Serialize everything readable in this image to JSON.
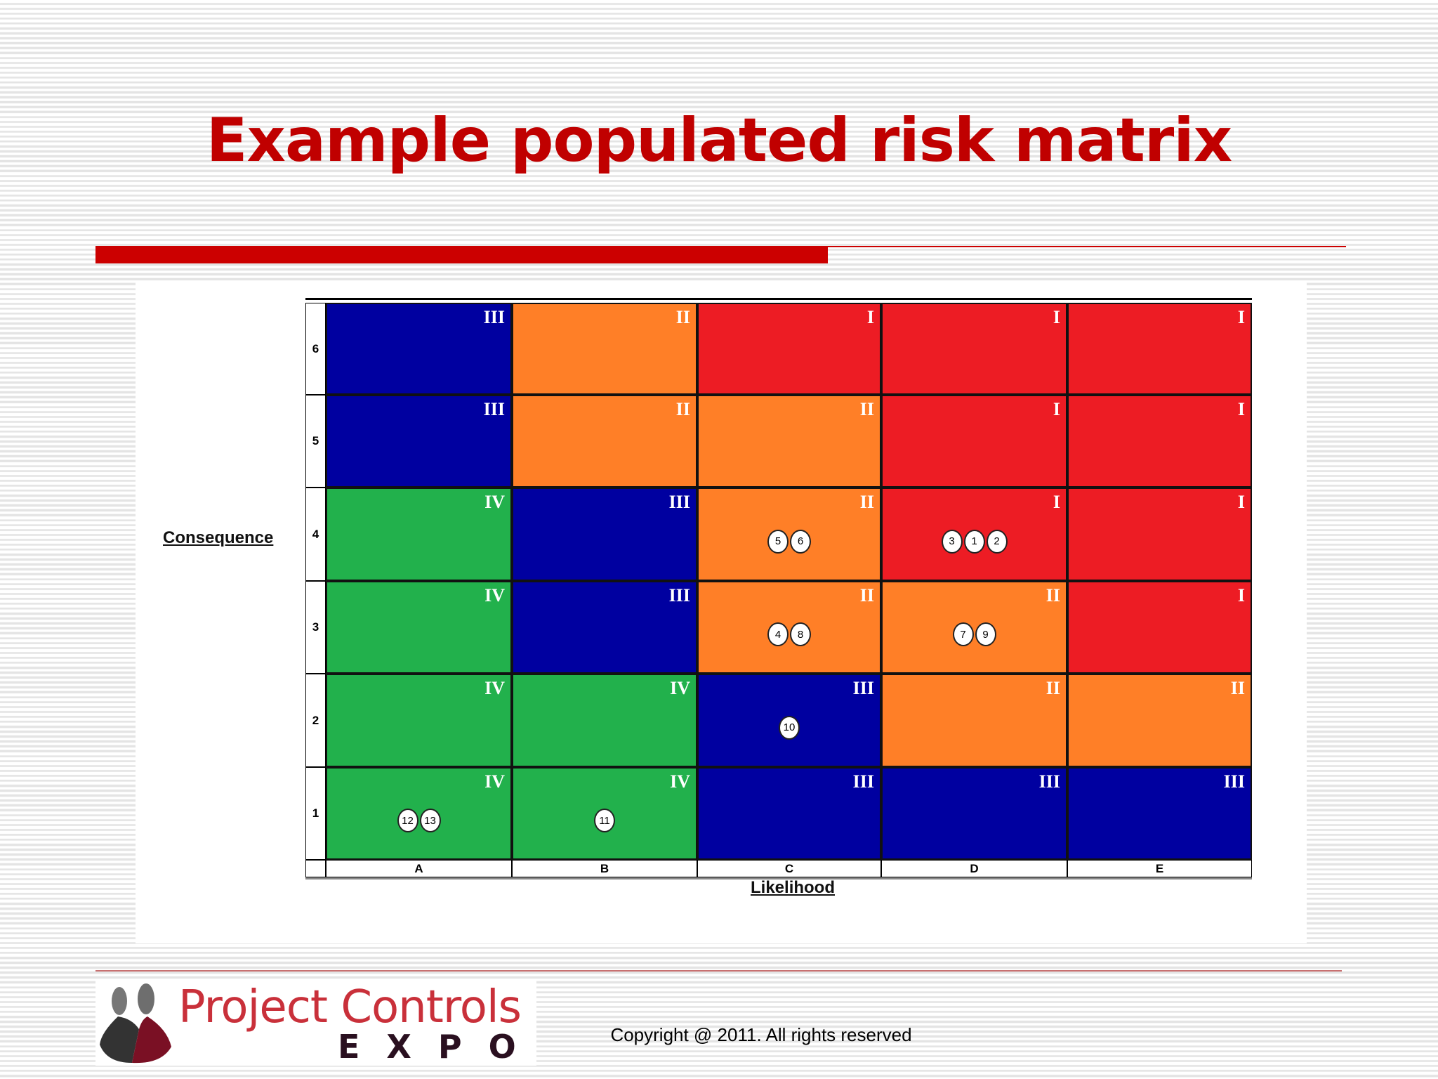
{
  "slide": {
    "title": "Example populated risk matrix",
    "copyright": "Copyright @ 2011. All rights reserved",
    "logo": {
      "line1": "Project Controls",
      "line2": "EXPO"
    }
  },
  "matrix": {
    "y_axis_label": "Consequence",
    "x_axis_label": "Likelihood",
    "likelihood": [
      "A",
      "B",
      "C",
      "D",
      "E"
    ],
    "consequence": [
      "6",
      "5",
      "4",
      "3",
      "2",
      "1"
    ],
    "ratings": [
      [
        "III",
        "II",
        "I",
        "I",
        "I"
      ],
      [
        "III",
        "II",
        "II",
        "I",
        "I"
      ],
      [
        "IV",
        "III",
        "II",
        "I",
        "I"
      ],
      [
        "IV",
        "III",
        "II",
        "II",
        "I"
      ],
      [
        "IV",
        "IV",
        "III",
        "II",
        "II"
      ],
      [
        "IV",
        "IV",
        "III",
        "III",
        "III"
      ]
    ],
    "colors": {
      "I": "#ed1c24",
      "II": "#ff7f27",
      "III": "#0000a0",
      "IV": "#22b14c"
    },
    "risks": [
      {
        "likelihood": "C",
        "consequence": "4",
        "ids": [
          "5",
          "6"
        ]
      },
      {
        "likelihood": "D",
        "consequence": "4",
        "ids": [
          "3",
          "1",
          "2"
        ]
      },
      {
        "likelihood": "C",
        "consequence": "3",
        "ids": [
          "4",
          "8"
        ]
      },
      {
        "likelihood": "D",
        "consequence": "3",
        "ids": [
          "7",
          "9"
        ]
      },
      {
        "likelihood": "C",
        "consequence": "2",
        "ids": [
          "10"
        ]
      },
      {
        "likelihood": "A",
        "consequence": "1",
        "ids": [
          "12",
          "13"
        ]
      },
      {
        "likelihood": "B",
        "consequence": "1",
        "ids": [
          "11"
        ]
      }
    ]
  }
}
